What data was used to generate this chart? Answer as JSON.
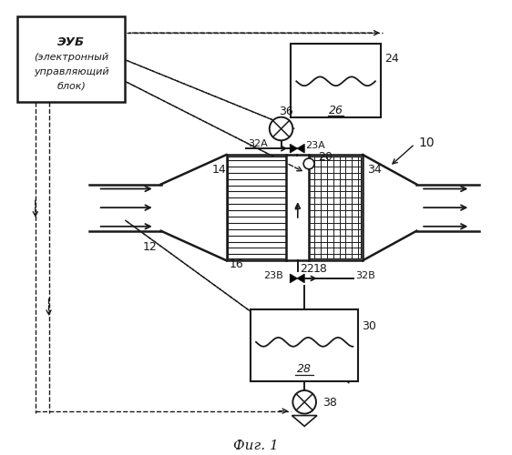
{
  "bg_color": "#ffffff",
  "lc": "#1a1a1a",
  "title": "Фиг. 1",
  "eub_text_line1": "ЭУБ",
  "eub_text_line2": "(электронный",
  "eub_text_line3": "управляющий",
  "eub_text_line4": "блок)",
  "label_10": "10",
  "label_12": "12",
  "label_14": "14",
  "label_16": "16",
  "label_18": "18",
  "label_20": "20",
  "label_22": "22",
  "label_23A": "23А",
  "label_23B": "23В",
  "label_24": "24",
  "label_26": "26",
  "label_28": "28",
  "label_30": "30",
  "label_32A": "32А",
  "label_32B": "32В",
  "label_34": "34",
  "label_36": "36",
  "label_38": "38"
}
